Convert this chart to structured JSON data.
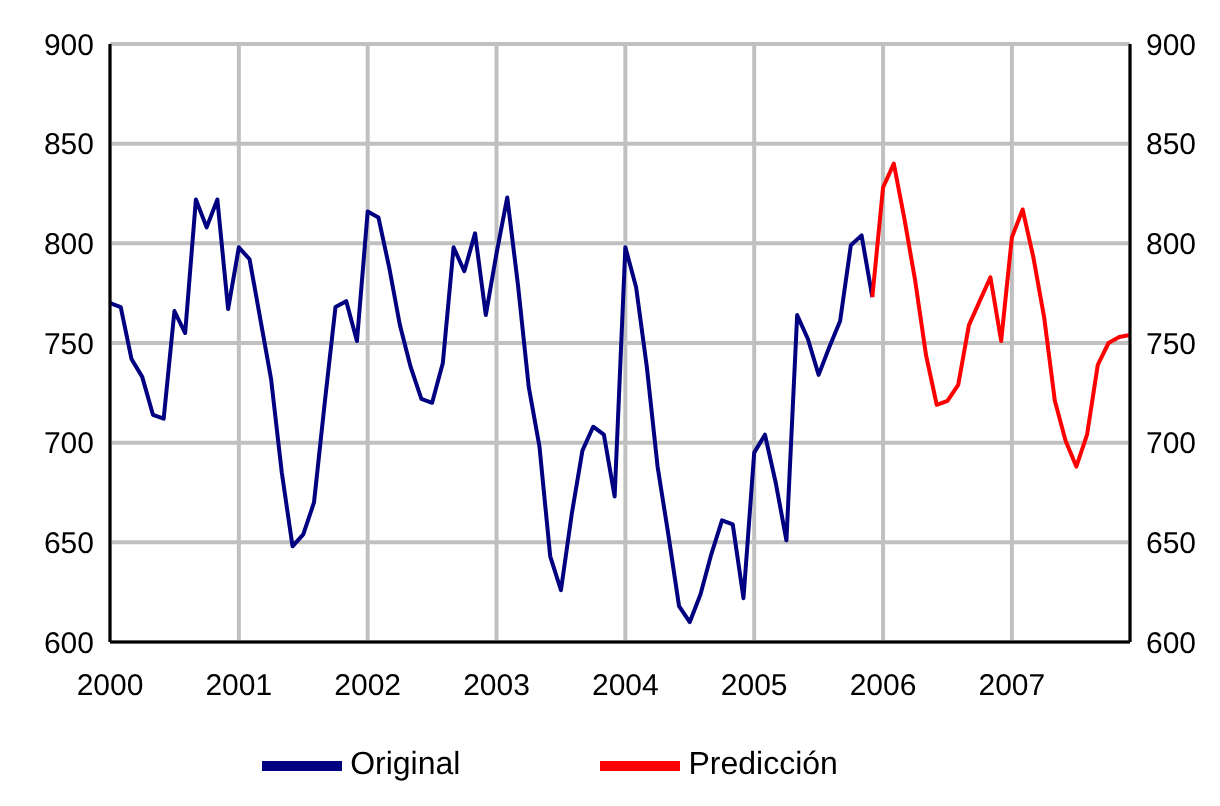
{
  "chart_data": {
    "type": "line",
    "xlim": [
      "2000-01",
      "2007-12"
    ],
    "xticks": [
      "2000",
      "2001",
      "2002",
      "2003",
      "2004",
      "2005",
      "2006",
      "2007"
    ],
    "ylim": [
      600,
      900
    ],
    "yticks": [
      600,
      650,
      700,
      750,
      800,
      850,
      900
    ],
    "y2lim": [
      600,
      900
    ],
    "y2ticks": [
      600,
      650,
      700,
      750,
      800,
      850,
      900
    ],
    "grid": true,
    "legend": "bottom",
    "marker": "none",
    "line_style": "solid",
    "series": [
      {
        "name": "Original",
        "color": "#000080",
        "x": [
          "2000-01",
          "2000-02",
          "2000-03",
          "2000-04",
          "2000-05",
          "2000-06",
          "2000-07",
          "2000-08",
          "2000-09",
          "2000-10",
          "2000-11",
          "2000-12",
          "2001-01",
          "2001-02",
          "2001-03",
          "2001-04",
          "2001-05",
          "2001-06",
          "2001-07",
          "2001-08",
          "2001-09",
          "2001-10",
          "2001-11",
          "2001-12",
          "2002-01",
          "2002-02",
          "2002-03",
          "2002-04",
          "2002-05",
          "2002-06",
          "2002-07",
          "2002-08",
          "2002-09",
          "2002-10",
          "2002-11",
          "2002-12",
          "2003-01",
          "2003-02",
          "2003-03",
          "2003-04",
          "2003-05",
          "2003-06",
          "2003-07",
          "2003-08",
          "2003-09",
          "2003-10",
          "2003-11",
          "2003-12",
          "2004-01",
          "2004-02",
          "2004-03",
          "2004-04",
          "2004-05",
          "2004-06",
          "2004-07",
          "2004-08",
          "2004-09",
          "2004-10",
          "2004-11",
          "2004-12",
          "2005-01",
          "2005-02",
          "2005-03",
          "2005-04",
          "2005-05",
          "2005-06",
          "2005-07",
          "2005-08",
          "2005-09",
          "2005-10",
          "2005-11",
          "2005-12"
        ],
        "values": [
          770,
          768,
          742,
          733,
          714,
          712,
          766,
          755,
          822,
          808,
          822,
          767,
          798,
          792,
          762,
          732,
          685,
          648,
          654,
          670,
          720,
          768,
          771,
          751,
          816,
          813,
          788,
          759,
          738,
          722,
          720,
          740,
          798,
          786,
          805,
          764,
          795,
          823,
          779,
          728,
          698,
          643,
          626,
          664,
          696,
          708,
          704,
          673,
          798,
          778,
          738,
          688,
          654,
          618,
          610,
          624,
          644,
          661,
          659,
          622,
          695,
          704,
          680,
          651,
          764,
          752,
          734,
          748,
          761,
          799,
          804,
          773
        ]
      },
      {
        "name": "Predicción",
        "color": "#ff0000",
        "x": [
          "2005-12",
          "2006-01",
          "2006-02",
          "2006-03",
          "2006-04",
          "2006-05",
          "2006-06",
          "2006-07",
          "2006-08",
          "2006-09",
          "2006-10",
          "2006-11",
          "2006-12",
          "2007-01",
          "2007-02",
          "2007-03",
          "2007-04",
          "2007-05",
          "2007-06",
          "2007-07",
          "2007-08",
          "2007-09",
          "2007-10",
          "2007-11",
          "2007-12"
        ],
        "values": [
          773,
          828,
          840,
          812,
          781,
          744,
          719,
          721,
          729,
          759,
          771,
          783,
          751,
          803,
          817,
          793,
          763,
          721,
          701,
          688,
          704,
          739,
          750,
          753,
          754
        ]
      }
    ]
  }
}
